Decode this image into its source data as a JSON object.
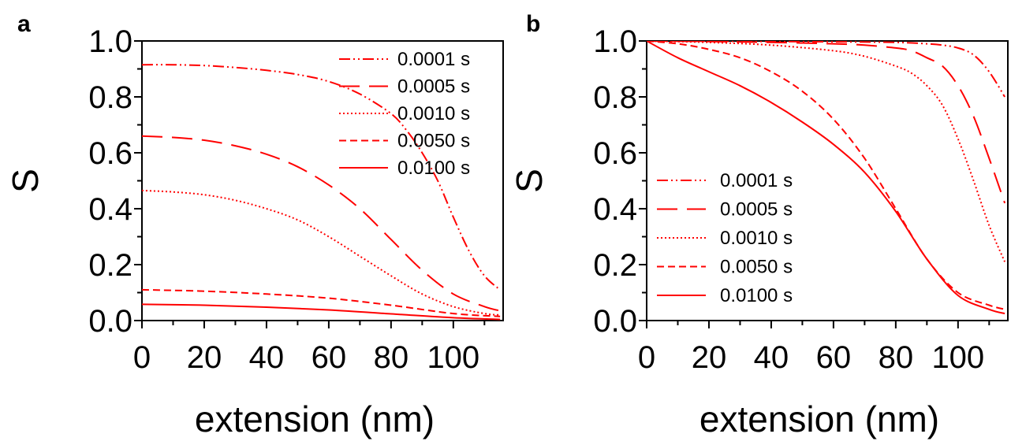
{
  "colors": {
    "series": "#ff0000",
    "axis": "#000000",
    "background": "#ffffff"
  },
  "chart_data": [
    {
      "type": "line",
      "panel_label": "a",
      "xlabel": "extension (nm)",
      "ylabel": "S",
      "xlim": [
        0,
        116
      ],
      "ylim": [
        0,
        1.0
      ],
      "xticks": [
        "0",
        "20",
        "40",
        "60",
        "80",
        "100"
      ],
      "yticks": [
        "0.0",
        "0.2",
        "0.4",
        "0.6",
        "0.8",
        "1.0"
      ],
      "legend_position": "top-right",
      "series": [
        {
          "name": "0.0001 s",
          "dash": "dashdotdot",
          "x": [
            0,
            10,
            20,
            30,
            40,
            50,
            60,
            70,
            80,
            85,
            90,
            95,
            100,
            105,
            110,
            115
          ],
          "y": [
            0.915,
            0.915,
            0.912,
            0.905,
            0.895,
            0.88,
            0.855,
            0.81,
            0.74,
            0.68,
            0.6,
            0.5,
            0.37,
            0.25,
            0.16,
            0.11
          ]
        },
        {
          "name": "0.0005 s",
          "dash": "longdash",
          "x": [
            0,
            10,
            20,
            30,
            40,
            50,
            60,
            70,
            80,
            90,
            100,
            110,
            115
          ],
          "y": [
            0.66,
            0.655,
            0.645,
            0.625,
            0.595,
            0.55,
            0.485,
            0.4,
            0.29,
            0.18,
            0.095,
            0.05,
            0.035
          ]
        },
        {
          "name": "0.0010 s",
          "dash": "dot",
          "x": [
            0,
            10,
            20,
            30,
            40,
            50,
            60,
            70,
            80,
            90,
            100,
            110,
            115
          ],
          "y": [
            0.465,
            0.46,
            0.45,
            0.43,
            0.4,
            0.36,
            0.3,
            0.23,
            0.16,
            0.095,
            0.05,
            0.025,
            0.02
          ]
        },
        {
          "name": "0.0050 s",
          "dash": "dash",
          "x": [
            0,
            20,
            40,
            60,
            80,
            100,
            115
          ],
          "y": [
            0.11,
            0.105,
            0.095,
            0.08,
            0.055,
            0.025,
            0.015
          ]
        },
        {
          "name": "0.0100 s",
          "dash": "solid",
          "x": [
            0,
            20,
            40,
            60,
            80,
            100,
            115
          ],
          "y": [
            0.058,
            0.055,
            0.048,
            0.038,
            0.024,
            0.01,
            0.004
          ]
        }
      ]
    },
    {
      "type": "line",
      "panel_label": "b",
      "xlabel": "extension (nm)",
      "ylabel": "S",
      "xlim": [
        0,
        116
      ],
      "ylim": [
        0,
        1.0
      ],
      "xticks": [
        "0",
        "20",
        "40",
        "60",
        "80",
        "100"
      ],
      "yticks": [
        "0.0",
        "0.2",
        "0.4",
        "0.6",
        "0.8",
        "1.0"
      ],
      "legend_position": "bottom-left",
      "series": [
        {
          "name": "0.0001 s",
          "dash": "dashdotdot",
          "x": [
            0,
            20,
            40,
            60,
            80,
            90,
            95,
            100,
            105,
            110,
            115
          ],
          "y": [
            1.0,
            0.999,
            0.998,
            0.997,
            0.995,
            0.99,
            0.985,
            0.975,
            0.95,
            0.89,
            0.8
          ]
        },
        {
          "name": "0.0005 s",
          "dash": "longdash",
          "x": [
            0,
            20,
            40,
            60,
            70,
            80,
            85,
            90,
            95,
            100,
            105,
            110,
            115
          ],
          "y": [
            1.0,
            0.998,
            0.995,
            0.99,
            0.985,
            0.975,
            0.965,
            0.94,
            0.91,
            0.84,
            0.73,
            0.58,
            0.42
          ]
        },
        {
          "name": "0.0010 s",
          "dash": "dot",
          "x": [
            0,
            20,
            40,
            60,
            70,
            80,
            85,
            90,
            95,
            100,
            105,
            110,
            115
          ],
          "y": [
            1.0,
            0.995,
            0.985,
            0.965,
            0.945,
            0.91,
            0.885,
            0.84,
            0.77,
            0.65,
            0.5,
            0.34,
            0.21
          ]
        },
        {
          "name": "0.0050 s",
          "dash": "dash",
          "x": [
            0,
            10,
            20,
            30,
            40,
            50,
            60,
            70,
            80,
            90,
            100,
            110,
            115
          ],
          "y": [
            1.0,
            0.99,
            0.97,
            0.94,
            0.89,
            0.82,
            0.72,
            0.58,
            0.4,
            0.22,
            0.1,
            0.055,
            0.04
          ]
        },
        {
          "name": "0.0100 s",
          "dash": "solid",
          "x": [
            0,
            10,
            20,
            30,
            40,
            50,
            60,
            70,
            80,
            90,
            100,
            110,
            115
          ],
          "y": [
            1.0,
            0.94,
            0.89,
            0.84,
            0.78,
            0.71,
            0.63,
            0.53,
            0.39,
            0.22,
            0.09,
            0.04,
            0.025
          ]
        }
      ]
    }
  ]
}
